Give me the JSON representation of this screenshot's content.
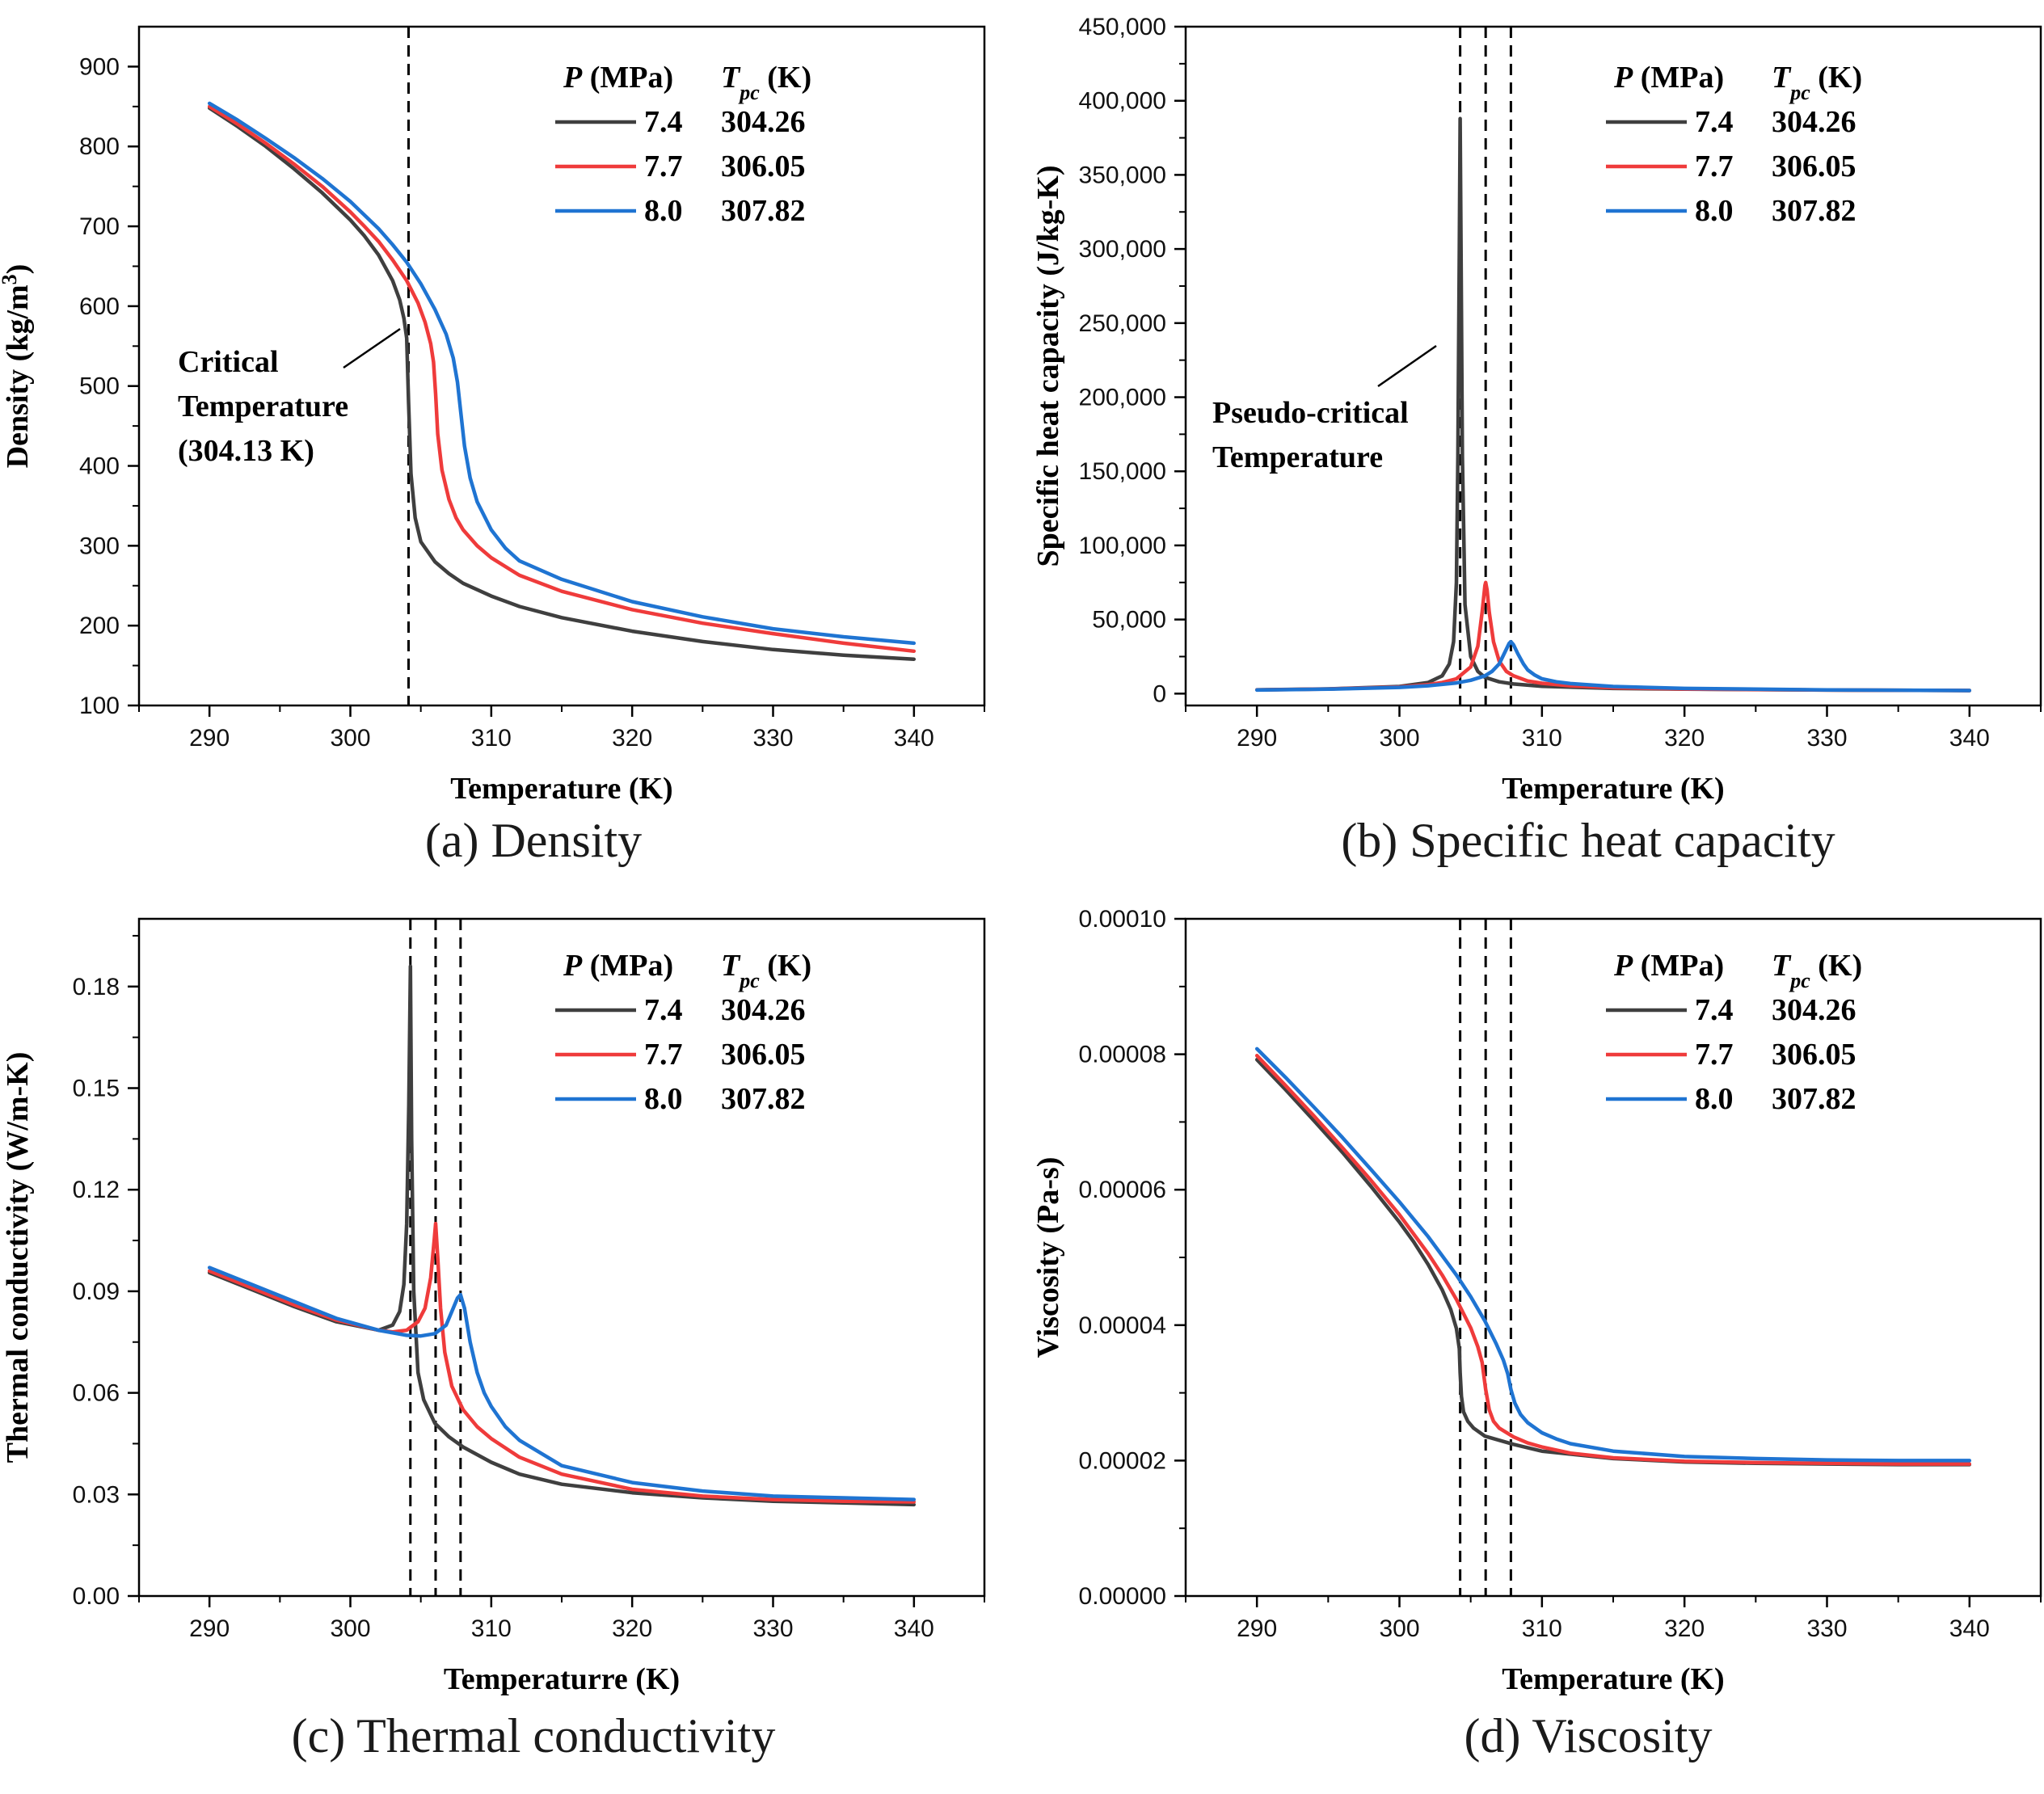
{
  "colors": {
    "p74": "#3f3f3f",
    "p77": "#ef3b3b",
    "p80": "#1f74d2",
    "vline": "#000000"
  },
  "legend": {
    "header_p": "P",
    "header_p_unit": " (MPa)",
    "header_t": "T",
    "header_t_sub": "pc",
    "header_t_unit": " (K)",
    "rows": [
      {
        "p": "7.4",
        "tpc": "304.26"
      },
      {
        "p": "7.7",
        "tpc": "306.05"
      },
      {
        "p": "8.0",
        "tpc": "307.82"
      }
    ]
  },
  "chart_data": [
    {
      "id": "a",
      "type": "line",
      "caption": "(a) Density",
      "xlabel": "Temperature (K)",
      "ylabel": "Density (kg/m",
      "ylabel_sup": "3",
      "ylabel_end": ")",
      "xlim": [
        285,
        345
      ],
      "ylim": [
        100,
        950
      ],
      "xticks": [
        290,
        300,
        310,
        320,
        330,
        340
      ],
      "yticks": [
        100,
        200,
        300,
        400,
        500,
        600,
        700,
        800,
        900
      ],
      "ytick_labels": [
        "100",
        "200",
        "300",
        "400",
        "500",
        "600",
        "700",
        "800",
        "900"
      ],
      "vlines": [
        304.13
      ],
      "annotation": {
        "lines": [
          "Critical",
          "Temperature",
          "(304.13 K)"
        ]
      },
      "series": [
        {
          "name": "7.4",
          "x": [
            290,
            292,
            294,
            296,
            298,
            300,
            301,
            302,
            303,
            303.5,
            303.8,
            304.0,
            304.13,
            304.3,
            304.6,
            305,
            306,
            307,
            308,
            310,
            312,
            315,
            320,
            325,
            330,
            335,
            340
          ],
          "y": [
            848,
            825,
            800,
            772,
            742,
            708,
            688,
            664,
            632,
            608,
            585,
            560,
            480,
            390,
            335,
            305,
            280,
            265,
            253,
            237,
            224,
            210,
            193,
            180,
            170,
            163,
            158
          ]
        },
        {
          "name": "7.7",
          "x": [
            290,
            292,
            294,
            296,
            298,
            300,
            301,
            302,
            303,
            304,
            304.8,
            305.3,
            305.7,
            305.9,
            306.05,
            306.2,
            306.5,
            307,
            307.5,
            308,
            309,
            310,
            312,
            315,
            320,
            325,
            330,
            335,
            340
          ],
          "y": [
            850,
            828,
            804,
            778,
            750,
            718,
            700,
            681,
            658,
            632,
            604,
            580,
            553,
            530,
            490,
            440,
            395,
            358,
            335,
            320,
            300,
            285,
            263,
            243,
            220,
            203,
            190,
            178,
            168
          ]
        },
        {
          "name": "8.0",
          "x": [
            290,
            292,
            294,
            296,
            298,
            300,
            302,
            303,
            304,
            305,
            306,
            306.8,
            307.3,
            307.6,
            307.82,
            308.1,
            308.5,
            309,
            310,
            311,
            312,
            315,
            320,
            325,
            330,
            335,
            340
          ],
          "y": [
            854,
            833,
            810,
            786,
            760,
            731,
            697,
            677,
            655,
            628,
            596,
            565,
            535,
            505,
            470,
            425,
            385,
            355,
            320,
            297,
            281,
            258,
            230,
            211,
            196,
            186,
            178
          ]
        }
      ]
    },
    {
      "id": "b",
      "type": "line",
      "caption": "(b) Specific heat capacity",
      "xlabel": "Temperature (K)",
      "ylabel": "Specific heat capacity (J/kg-K)",
      "xlim": [
        285,
        345
      ],
      "ylim": [
        -8000,
        450000
      ],
      "xticks": [
        290,
        300,
        310,
        320,
        330,
        340
      ],
      "yticks": [
        0,
        50000,
        100000,
        150000,
        200000,
        250000,
        300000,
        350000,
        400000,
        450000
      ],
      "ytick_labels": [
        "0",
        "50,000",
        "100,000",
        "150,000",
        "200,000",
        "250,000",
        "300,000",
        "350,000",
        "400,000",
        "450,000"
      ],
      "vlines": [
        304.26,
        306.05,
        307.82
      ],
      "annotation": {
        "lines": [
          "Pseudo-critical",
          "Temperature"
        ]
      },
      "series": [
        {
          "name": "7.4",
          "x": [
            290,
            295,
            300,
            302,
            303,
            303.5,
            303.8,
            304.0,
            304.1,
            304.2,
            304.26,
            304.32,
            304.42,
            304.6,
            305,
            305.5,
            306,
            307,
            308,
            310,
            315,
            320,
            330,
            340
          ],
          "y": [
            2600,
            3200,
            4800,
            7500,
            12000,
            20000,
            35000,
            75000,
            160000,
            300000,
            388000,
            300000,
            160000,
            60000,
            25000,
            15000,
            11000,
            8000,
            6500,
            5000,
            3500,
            3000,
            2400,
            2100
          ]
        },
        {
          "name": "7.7",
          "x": [
            290,
            295,
            300,
            302,
            303,
            304,
            305,
            305.5,
            305.8,
            306.0,
            306.05,
            306.15,
            306.3,
            306.6,
            307,
            307.5,
            308,
            309,
            310,
            312,
            315,
            320,
            330,
            340
          ],
          "y": [
            2500,
            3100,
            4500,
            6000,
            7500,
            10000,
            18000,
            32000,
            55000,
            73000,
            75000,
            70000,
            55000,
            35000,
            22000,
            15000,
            12000,
            8500,
            7000,
            5300,
            4000,
            3100,
            2400,
            2100
          ]
        },
        {
          "name": "8.0",
          "x": [
            290,
            295,
            300,
            302,
            304,
            305,
            306,
            306.5,
            307,
            307.4,
            307.7,
            307.82,
            308,
            308.3,
            308.7,
            309,
            309.5,
            310,
            311,
            312,
            315,
            320,
            330,
            340
          ],
          "y": [
            2400,
            3000,
            4200,
            5300,
            7200,
            9000,
            12000,
            15000,
            20000,
            28000,
            34000,
            35000,
            33000,
            27000,
            20000,
            16000,
            12500,
            10000,
            8000,
            6800,
            4800,
            3500,
            2500,
            2100
          ]
        }
      ]
    },
    {
      "id": "c",
      "type": "line",
      "caption": "(c) Thermal conductivity",
      "xlabel": "Temperaturre (K)",
      "ylabel": "Thermal conductivity (W/m-K)",
      "xlim": [
        285,
        345
      ],
      "ylim": [
        0,
        0.2
      ],
      "xticks": [
        290,
        300,
        310,
        320,
        330,
        340
      ],
      "yticks": [
        0,
        0.03,
        0.06,
        0.09,
        0.12,
        0.15,
        0.18
      ],
      "ytick_labels": [
        "0.00",
        "0.03",
        "0.06",
        "0.09",
        "0.12",
        "0.15",
        "0.18"
      ],
      "vlines": [
        304.26,
        306.05,
        307.82
      ],
      "series": [
        {
          "name": "7.4",
          "x": [
            290,
            293,
            296,
            299,
            302,
            303,
            303.5,
            303.8,
            304.0,
            304.15,
            304.26,
            304.35,
            304.5,
            304.8,
            305.2,
            306,
            307,
            308,
            310,
            312,
            315,
            320,
            325,
            330,
            335,
            340
          ],
          "y": [
            0.0955,
            0.0905,
            0.0855,
            0.081,
            0.0785,
            0.08,
            0.084,
            0.092,
            0.11,
            0.145,
            0.186,
            0.135,
            0.09,
            0.066,
            0.058,
            0.051,
            0.047,
            0.044,
            0.0395,
            0.036,
            0.033,
            0.0305,
            0.029,
            0.028,
            0.0275,
            0.027
          ]
        },
        {
          "name": "7.7",
          "x": [
            290,
            293,
            296,
            299,
            302,
            303,
            304,
            304.8,
            305.3,
            305.7,
            305.95,
            306.05,
            306.2,
            306.4,
            306.7,
            307.2,
            308,
            309,
            310,
            312,
            315,
            320,
            325,
            330,
            335,
            340
          ],
          "y": [
            0.096,
            0.091,
            0.086,
            0.0815,
            0.0785,
            0.078,
            0.0785,
            0.081,
            0.085,
            0.094,
            0.105,
            0.11,
            0.1,
            0.085,
            0.072,
            0.062,
            0.055,
            0.05,
            0.0465,
            0.041,
            0.036,
            0.0315,
            0.0295,
            0.0285,
            0.028,
            0.0278
          ]
        },
        {
          "name": "8.0",
          "x": [
            290,
            293,
            296,
            299,
            302,
            304,
            305,
            306,
            306.8,
            307.3,
            307.6,
            307.82,
            308.1,
            308.5,
            309,
            309.5,
            310,
            311,
            312,
            315,
            320,
            325,
            330,
            335,
            340
          ],
          "y": [
            0.097,
            0.092,
            0.087,
            0.082,
            0.0785,
            0.077,
            0.0768,
            0.0775,
            0.08,
            0.085,
            0.088,
            0.089,
            0.085,
            0.075,
            0.066,
            0.06,
            0.056,
            0.05,
            0.046,
            0.0385,
            0.0335,
            0.031,
            0.0295,
            0.029,
            0.0285
          ]
        }
      ]
    },
    {
      "id": "d",
      "type": "line",
      "caption": "(d) Viscosity",
      "xlabel": "Temperature (K)",
      "ylabel": "Viscosity (Pa-s)",
      "xlim": [
        285,
        345
      ],
      "ylim": [
        0,
        0.0001
      ],
      "xticks": [
        290,
        300,
        310,
        320,
        330,
        340
      ],
      "yticks": [
        0,
        2e-05,
        4e-05,
        6e-05,
        8e-05,
        0.0001
      ],
      "ytick_labels": [
        "0.00000",
        "0.00002",
        "0.00004",
        "0.00006",
        "0.00008",
        "0.00010"
      ],
      "vlines": [
        304.26,
        306.05,
        307.82
      ],
      "series": [
        {
          "name": "7.4",
          "x": [
            290,
            292,
            294,
            296,
            298,
            300,
            301,
            302,
            303,
            303.6,
            304.0,
            304.2,
            304.26,
            304.35,
            304.5,
            304.8,
            305.2,
            306,
            308,
            310,
            315,
            320,
            325,
            330,
            335,
            340
          ],
          "y": [
            7.92e-05,
            7.48e-05,
            7.02e-05,
            6.55e-05,
            6.05e-05,
            5.52e-05,
            5.23e-05,
            4.9e-05,
            4.52e-05,
            4.23e-05,
            3.95e-05,
            3.65e-05,
            3.3e-05,
            2.95e-05,
            2.72e-05,
            2.58e-05,
            2.48e-05,
            2.36e-05,
            2.24e-05,
            2.14e-05,
            2.03e-05,
            1.98e-05,
            1.96e-05,
            1.95e-05,
            1.94e-05,
            1.94e-05
          ]
        },
        {
          "name": "7.7",
          "x": [
            290,
            292,
            294,
            296,
            298,
            300,
            302,
            303,
            304,
            305,
            305.5,
            305.8,
            306.05,
            306.3,
            306.6,
            307,
            308,
            309,
            310,
            312,
            315,
            320,
            325,
            330,
            335,
            340
          ],
          "y": [
            7.98e-05,
            7.54e-05,
            7.09e-05,
            6.62e-05,
            6.14e-05,
            5.63e-05,
            5.06e-05,
            4.74e-05,
            4.38e-05,
            3.96e-05,
            3.68e-05,
            3.45e-05,
            3.05e-05,
            2.75e-05,
            2.58e-05,
            2.48e-05,
            2.35e-05,
            2.26e-05,
            2.2e-05,
            2.11e-05,
            2.04e-05,
            1.99e-05,
            1.97e-05,
            1.96e-05,
            1.95e-05,
            1.95e-05
          ]
        },
        {
          "name": "8.0",
          "x": [
            290,
            292,
            294,
            296,
            298,
            300,
            302,
            304,
            305,
            306,
            306.8,
            307.3,
            307.6,
            307.82,
            308.1,
            308.5,
            309,
            310,
            311,
            312,
            315,
            320,
            325,
            330,
            335,
            340
          ],
          "y": [
            8.08e-05,
            7.66e-05,
            7.22e-05,
            6.77e-05,
            6.3e-05,
            5.82e-05,
            5.31e-05,
            4.74e-05,
            4.42e-05,
            4.06e-05,
            3.72e-05,
            3.48e-05,
            3.28e-05,
            3.05e-05,
            2.85e-05,
            2.68e-05,
            2.56e-05,
            2.41e-05,
            2.32e-05,
            2.25e-05,
            2.14e-05,
            2.06e-05,
            2.03e-05,
            2.01e-05,
            2e-05,
            2e-05
          ]
        }
      ]
    }
  ]
}
